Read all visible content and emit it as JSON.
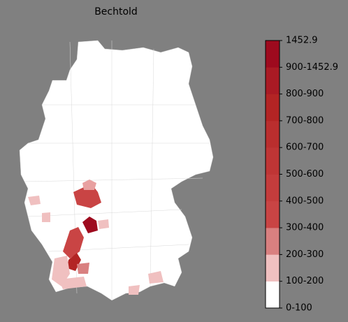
{
  "title": "Bechtold",
  "colorbar": {
    "labels": [
      "0-100",
      "100-200",
      "200-300",
      "300-400",
      "400-500",
      "500-600",
      "600-700",
      "700-800",
      "800-900",
      "900-1452.9",
      "1452.9"
    ],
    "colors": [
      "#ffffff",
      "#f0c0c0",
      "#d98080",
      "#c94444",
      "#c43c3c",
      "#bf3535",
      "#ba2e2e",
      "#b32424",
      "#aa1a24",
      "#9e0a1e"
    ]
  }
}
